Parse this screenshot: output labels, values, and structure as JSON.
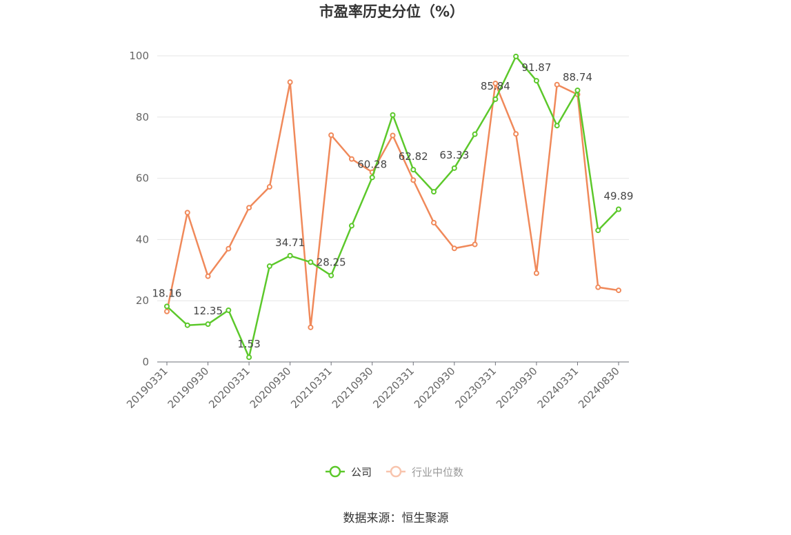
{
  "chart_data": {
    "type": "line",
    "title": "市盈率历史分位（%）",
    "x": [
      "20190331",
      "20190630",
      "20190930",
      "20191231",
      "20200331",
      "20200630",
      "20200930",
      "20201231",
      "20210331",
      "20210630",
      "20210930",
      "20211231",
      "20220331",
      "20220630",
      "20220930",
      "20221231",
      "20230331",
      "20230630",
      "20230930",
      "20231231",
      "20240331",
      "20240630",
      "20240830"
    ],
    "x_tick_labels": [
      "20190331",
      "20190930",
      "20200331",
      "20200930",
      "20210331",
      "20210930",
      "20220331",
      "20220930",
      "20230331",
      "20230930",
      "20240331",
      "20240830"
    ],
    "ylim": [
      0,
      100
    ],
    "y_ticks": [
      0,
      20,
      40,
      60,
      80,
      100
    ],
    "grid": true,
    "legend_position": "bottom",
    "series": [
      {
        "name": "公司",
        "color": "#5cc82b",
        "values": [
          18.16,
          12.0,
          12.35,
          16.9,
          1.53,
          31.3,
          34.71,
          32.6,
          28.25,
          44.5,
          60.28,
          80.7,
          62.82,
          55.6,
          63.33,
          74.4,
          85.84,
          99.8,
          91.87,
          77.2,
          88.74,
          43.0,
          49.89
        ],
        "labels": [
          "18.16",
          null,
          "12.35",
          null,
          "1.53",
          null,
          "34.71",
          null,
          "28.25",
          null,
          "60.28",
          null,
          "62.82",
          null,
          "63.33",
          null,
          "85.84",
          null,
          "91.87",
          null,
          "88.74",
          null,
          "49.89"
        ]
      },
      {
        "name": "行业中位数",
        "color": "#f0895a",
        "values": [
          16.5,
          48.8,
          28.0,
          37.0,
          50.4,
          57.2,
          91.4,
          11.3,
          74.1,
          66.3,
          62.0,
          74.0,
          59.4,
          45.5,
          37.1,
          38.4,
          91.0,
          74.5,
          29.0,
          90.6,
          87.4,
          24.4,
          23.4
        ]
      }
    ]
  },
  "source_text": "数据来源：恒生聚源"
}
